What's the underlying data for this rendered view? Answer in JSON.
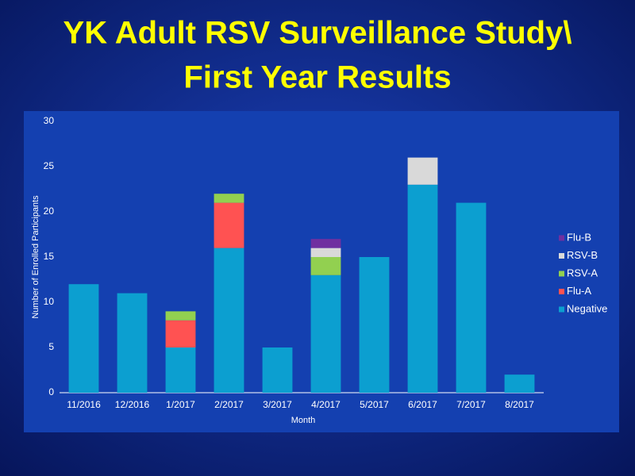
{
  "chart_data": {
    "type": "stacked_bar",
    "title": [
      "YK Adult RSV Surveillance Study\\",
      "First Year Results"
    ],
    "x_label": "Month",
    "y_label": "Number of Enrolled Participants",
    "categories": [
      "11/2016",
      "12/2016",
      "1/2017",
      "2/2017",
      "3/2017",
      "4/2017",
      "5/2017",
      "6/2017",
      "7/2017",
      "8/2017"
    ],
    "series": [
      {
        "name": "Negative",
        "color": "#0c9fd0",
        "values": [
          12,
          11,
          5,
          16,
          5,
          13,
          15,
          23,
          21,
          2
        ]
      },
      {
        "name": "Flu-A",
        "color": "#ff5252",
        "values": [
          0,
          0,
          3,
          5,
          0,
          0,
          0,
          0,
          0,
          0
        ]
      },
      {
        "name": "RSV-A",
        "color": "#92d050",
        "values": [
          0,
          0,
          1,
          1,
          0,
          2,
          0,
          0,
          0,
          0
        ]
      },
      {
        "name": "RSV-B",
        "color": "#d9d9d9",
        "values": [
          0,
          0,
          0,
          0,
          0,
          1,
          0,
          3,
          0,
          0
        ]
      },
      {
        "name": "Flu-B",
        "color": "#7030a0",
        "values": [
          0,
          0,
          0,
          0,
          0,
          1,
          0,
          0,
          0,
          0
        ]
      }
    ],
    "ylim": [
      0,
      30
    ],
    "yticks": [
      0,
      5,
      10,
      15,
      20,
      25,
      30
    ],
    "grid": false,
    "legend": "right"
  }
}
